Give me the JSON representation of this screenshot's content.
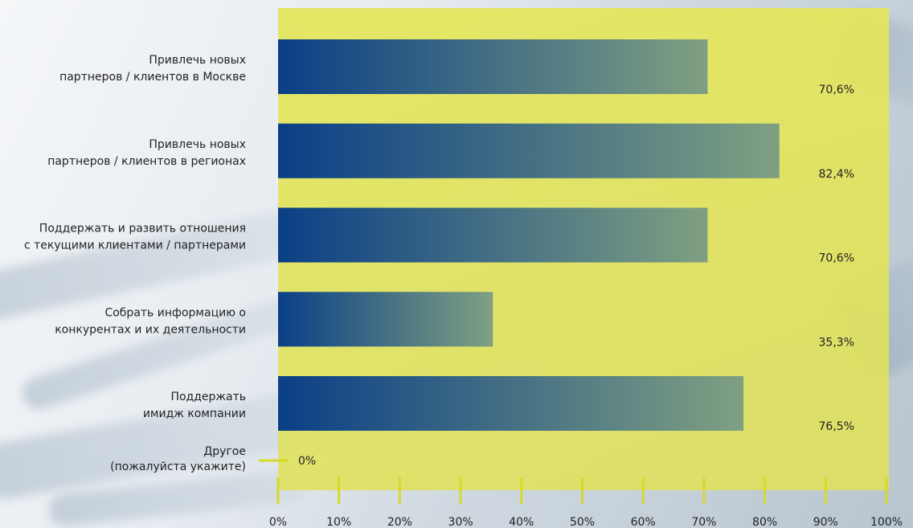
{
  "chart_data": {
    "type": "bar",
    "orientation": "horizontal",
    "categories": [
      [
        "Привлечь новых",
        "партнеров / клиентов в Москве"
      ],
      [
        "Привлечь новых",
        "партнеров / клиентов в регионах"
      ],
      [
        "Поддержать и развить отношения",
        "с текущими клиентами / партнерами"
      ],
      [
        "Собрать информацию о",
        "конкурентах и их деятельности"
      ],
      [
        "Поддержать",
        "имидж компании"
      ],
      [
        "Другое",
        "(пожалуйста укажите)"
      ]
    ],
    "values": [
      70.6,
      82.4,
      70.6,
      35.3,
      76.5,
      0
    ],
    "value_labels": [
      "70,6%",
      "82,4%",
      "70,6%",
      "35,3%",
      "76,5%",
      "0%"
    ],
    "xlim": [
      0,
      100
    ],
    "x_ticks": [
      0,
      10,
      20,
      30,
      40,
      50,
      60,
      70,
      80,
      90,
      100
    ],
    "x_tick_labels": [
      "0%",
      "10%",
      "20%",
      "30%",
      "40%",
      "50%",
      "60%",
      "70%",
      "80%",
      "90%",
      "100%"
    ],
    "grid": false,
    "colors": {
      "plot_background": "#e6e84f",
      "bar_start": "#0a3f86",
      "bar_end": "#7fa082",
      "tick": "#d7d92a",
      "text": "#222222"
    }
  }
}
